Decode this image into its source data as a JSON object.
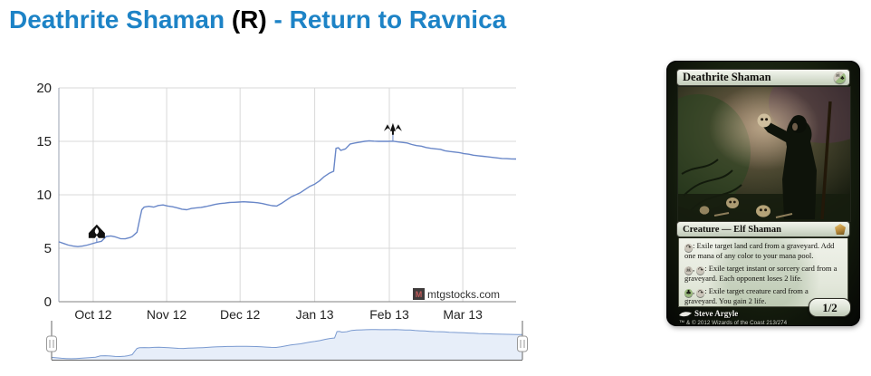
{
  "title": {
    "card_name": "Deathrite Shaman",
    "rarity": "(R)",
    "separator": "-",
    "set_name": "Return to Ravnica",
    "link_color": "#1d83c6"
  },
  "chart_data": {
    "type": "line",
    "title": "",
    "xlabel": "",
    "ylabel": "",
    "ylim": [
      0,
      20
    ],
    "y_ticks": [
      0,
      5,
      10,
      15,
      20
    ],
    "x_max_day": 193,
    "x_ticks": [
      {
        "day": 14.5,
        "label": "Oct 12"
      },
      {
        "day": 45.5,
        "label": "Nov 12"
      },
      {
        "day": 76.5,
        "label": "Dec 12"
      },
      {
        "day": 108,
        "label": "Jan 13"
      },
      {
        "day": 139.5,
        "label": "Feb 13"
      },
      {
        "day": 170.5,
        "label": "Mar 13"
      }
    ],
    "grid": true,
    "legend": "none",
    "watermark": {
      "text": "mtgstocks.com",
      "logo_letter": "M"
    },
    "series": [
      {
        "name": "price",
        "points": [
          [
            0,
            5.6
          ],
          [
            2,
            5.45
          ],
          [
            4,
            5.3
          ],
          [
            6,
            5.2
          ],
          [
            8,
            5.15
          ],
          [
            10,
            5.2
          ],
          [
            12,
            5.3
          ],
          [
            14,
            5.42
          ],
          [
            16,
            5.55
          ],
          [
            18,
            5.65
          ],
          [
            20,
            6.1
          ],
          [
            22,
            6.15
          ],
          [
            24,
            6.05
          ],
          [
            26,
            5.9
          ],
          [
            28,
            5.88
          ],
          [
            30,
            6.0
          ],
          [
            31,
            6.1
          ],
          [
            32,
            6.3
          ],
          [
            33,
            6.5
          ],
          [
            34,
            7.6
          ],
          [
            35,
            8.6
          ],
          [
            36,
            8.85
          ],
          [
            38,
            8.92
          ],
          [
            40,
            8.85
          ],
          [
            42,
            9.0
          ],
          [
            44,
            9.05
          ],
          [
            46,
            8.95
          ],
          [
            48,
            8.88
          ],
          [
            50,
            8.78
          ],
          [
            52,
            8.65
          ],
          [
            54,
            8.6
          ],
          [
            56,
            8.72
          ],
          [
            58,
            8.78
          ],
          [
            60,
            8.82
          ],
          [
            62,
            8.9
          ],
          [
            64,
            9.0
          ],
          [
            66,
            9.1
          ],
          [
            68,
            9.18
          ],
          [
            70,
            9.22
          ],
          [
            72,
            9.28
          ],
          [
            74,
            9.3
          ],
          [
            76,
            9.32
          ],
          [
            78,
            9.35
          ],
          [
            80,
            9.32
          ],
          [
            82,
            9.3
          ],
          [
            84,
            9.25
          ],
          [
            86,
            9.18
          ],
          [
            88,
            9.08
          ],
          [
            90,
            8.98
          ],
          [
            92,
            8.95
          ],
          [
            94,
            9.2
          ],
          [
            96,
            9.5
          ],
          [
            98,
            9.8
          ],
          [
            100,
            10.0
          ],
          [
            102,
            10.2
          ],
          [
            104,
            10.5
          ],
          [
            106,
            10.8
          ],
          [
            108,
            11.0
          ],
          [
            110,
            11.3
          ],
          [
            112,
            11.7
          ],
          [
            114,
            12.0
          ],
          [
            116,
            12.2
          ],
          [
            117,
            14.35
          ],
          [
            118,
            14.4
          ],
          [
            119,
            14.15
          ],
          [
            121,
            14.3
          ],
          [
            123,
            14.75
          ],
          [
            125,
            14.85
          ],
          [
            127,
            14.92
          ],
          [
            129,
            15.0
          ],
          [
            131,
            15.05
          ],
          [
            133,
            15.02
          ],
          [
            135,
            15.0
          ],
          [
            137,
            15.0
          ],
          [
            139,
            15.0
          ],
          [
            141,
            15.02
          ],
          [
            143,
            14.95
          ],
          [
            145,
            14.9
          ],
          [
            147,
            14.85
          ],
          [
            149,
            14.7
          ],
          [
            151,
            14.6
          ],
          [
            153,
            14.55
          ],
          [
            155,
            14.42
          ],
          [
            157,
            14.35
          ],
          [
            159,
            14.3
          ],
          [
            161,
            14.25
          ],
          [
            163,
            14.12
          ],
          [
            165,
            14.05
          ],
          [
            167,
            14.0
          ],
          [
            169,
            13.95
          ],
          [
            171,
            13.85
          ],
          [
            173,
            13.8
          ],
          [
            175,
            13.7
          ],
          [
            177,
            13.65
          ],
          [
            179,
            13.6
          ],
          [
            181,
            13.55
          ],
          [
            183,
            13.5
          ],
          [
            185,
            13.45
          ],
          [
            187,
            13.4
          ],
          [
            189,
            13.38
          ],
          [
            191,
            13.36
          ],
          [
            193,
            13.35
          ]
        ]
      }
    ],
    "markers": [
      {
        "day": 16,
        "value": 5.55,
        "tip": 5.95,
        "icon": "price-alert-badge-icon"
      },
      {
        "day": 141,
        "value": 15.02,
        "tip": 15.7,
        "icon": "spike-arrows-icon"
      }
    ],
    "navigator": {
      "range": "full",
      "handles": 2
    },
    "colors": {
      "line": "#6987c8",
      "grid": "#d8d8d8",
      "axis_y": "#9aa0b0",
      "axis_x": "#808080",
      "label": "#222222",
      "marker": "#111111",
      "nav_fill": "#e7eef9",
      "nav_line": "#7a9ad0",
      "nav_frame": "#666666",
      "watermark_text": "#333333"
    }
  },
  "card": {
    "name": "Deathrite Shaman",
    "mana_cost": "{B/G}",
    "type_line": "Creature — Elf Shaman",
    "rules": [
      "{T}: Exile target land card from a graveyard. Add one mana of any color to your mana pool.",
      "{B}, {T}: Exile target instant or sorcery card from a graveyard. Each opponent loses 2 life.",
      "{G}, {T}: Exile target creature card from a graveyard. You gain 2 life."
    ],
    "mana_glyphs": {
      "T": "↷",
      "B": "☠",
      "G": "♣"
    },
    "artist": "Steve Argyle",
    "copyright": "™ & © 2012 Wizards of the Coast 213/274",
    "power_toughness": "1/2"
  }
}
